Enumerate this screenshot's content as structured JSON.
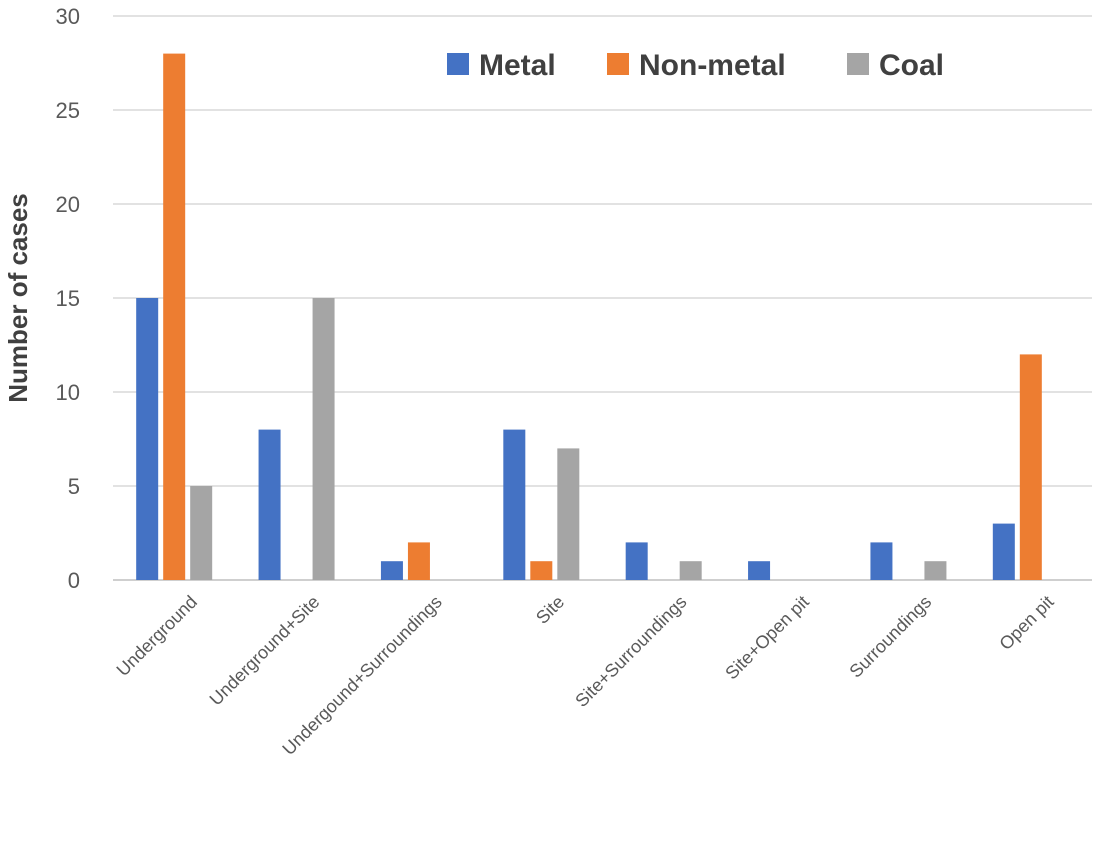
{
  "chart_data": {
    "type": "bar",
    "title": "",
    "xlabel": "",
    "ylabel": "Number of cases",
    "ylim": [
      0,
      30
    ],
    "yticks": [
      0,
      5,
      10,
      15,
      20,
      25,
      30
    ],
    "grid": true,
    "legend_position": "top-right",
    "categories": [
      "Underground",
      "Underground+Site",
      "Undergound+Surroundings",
      "Site",
      "Site+Surroundings",
      "Site+Open pit",
      "Surroundings",
      "Open pit"
    ],
    "series": [
      {
        "name": "Metal",
        "color": "#4472C4",
        "values": [
          15,
          8,
          1,
          8,
          2,
          1,
          2,
          3
        ]
      },
      {
        "name": "Non-metal",
        "color": "#ED7D31",
        "values": [
          28,
          0,
          2,
          1,
          0,
          0,
          0,
          12
        ]
      },
      {
        "name": "Coal",
        "color": "#A5A5A5",
        "values": [
          5,
          15,
          0,
          7,
          1,
          0,
          1,
          0
        ]
      }
    ]
  }
}
